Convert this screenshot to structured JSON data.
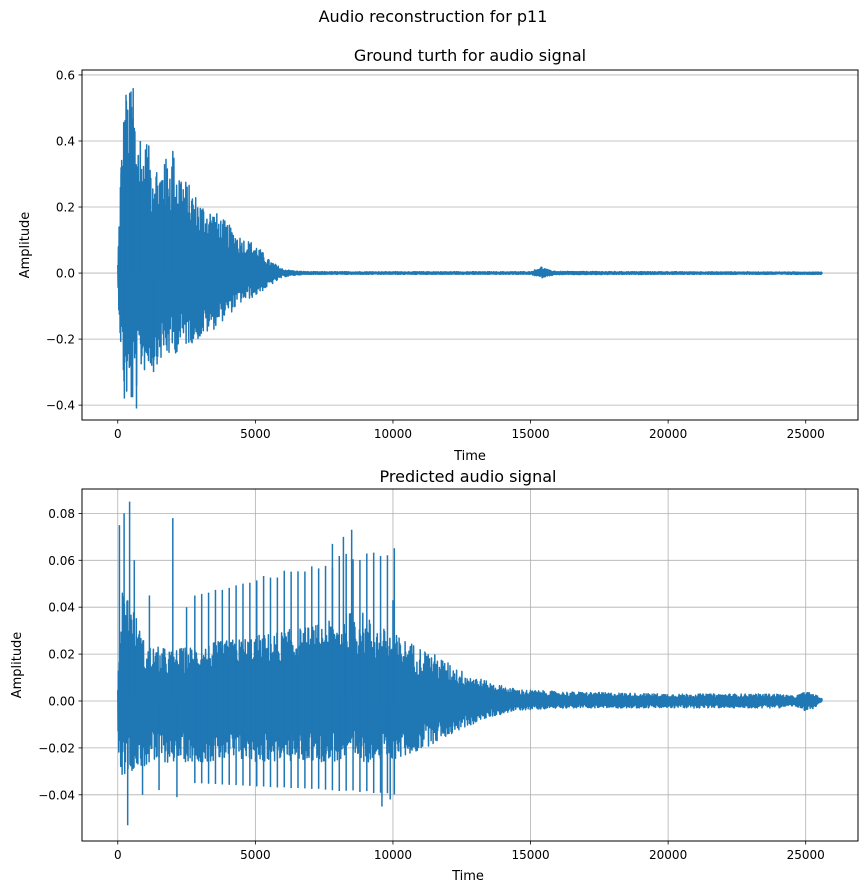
{
  "figure": {
    "suptitle": "Audio reconstruction for p11"
  },
  "chart_data": [
    {
      "type": "line",
      "title": "Ground turth for audio signal",
      "xlabel": "Time",
      "ylabel": "Amplitude",
      "xlim": [
        -1300,
        26900
      ],
      "ylim": [
        -0.445,
        0.615
      ],
      "xticks": [
        0,
        5000,
        10000,
        15000,
        20000,
        25000
      ],
      "xtick_labels": [
        "0",
        "5000",
        "10000",
        "15000",
        "20000",
        "25000"
      ],
      "yticks": [
        -0.4,
        -0.2,
        0.0,
        0.2,
        0.4,
        0.6
      ],
      "ytick_labels": [
        "−0.4",
        "−0.2",
        "0.0",
        "0.2",
        "0.4",
        "0.6"
      ],
      "grid": "y-only",
      "line_color": "#1f77b4",
      "x_range": [
        0,
        25600
      ],
      "envelope": {
        "x": [
          0,
          100,
          250,
          400,
          550,
          800,
          1100,
          1500,
          2000,
          2500,
          3000,
          3500,
          4000,
          4500,
          5000,
          5500,
          6000,
          6500,
          7000,
          10000,
          15000,
          15400,
          15500,
          15700,
          16000,
          20000,
          25600
        ],
        "upper": [
          0.03,
          0.32,
          0.54,
          0.55,
          0.56,
          0.4,
          0.39,
          0.33,
          0.37,
          0.28,
          0.22,
          0.19,
          0.15,
          0.11,
          0.09,
          0.04,
          0.012,
          0.006,
          0.004,
          0.004,
          0.004,
          0.02,
          0.015,
          0.008,
          0.005,
          0.004,
          0.003
        ],
        "lower": [
          -0.05,
          -0.22,
          -0.38,
          -0.39,
          -0.41,
          -0.3,
          -0.3,
          -0.27,
          -0.25,
          -0.22,
          -0.2,
          -0.17,
          -0.13,
          -0.09,
          -0.07,
          -0.04,
          -0.012,
          -0.006,
          -0.004,
          -0.004,
          -0.004,
          -0.015,
          -0.012,
          -0.008,
          -0.005,
          -0.004,
          -0.004
        ]
      },
      "spikes": [
        {
          "x": 120,
          "y": 0.32
        },
        {
          "x": 240,
          "y": -0.38
        },
        {
          "x": 300,
          "y": 0.54
        },
        {
          "x": 480,
          "y": 0.55
        },
        {
          "x": 560,
          "y": 0.56
        },
        {
          "x": 680,
          "y": -0.41
        },
        {
          "x": 820,
          "y": 0.4
        },
        {
          "x": 1050,
          "y": 0.39
        },
        {
          "x": 1300,
          "y": -0.3
        },
        {
          "x": 1700,
          "y": 0.33
        },
        {
          "x": 2000,
          "y": 0.37
        }
      ]
    },
    {
      "type": "line",
      "title": "Predicted audio signal",
      "xlabel": "Time",
      "ylabel": "Amplitude",
      "xlim": [
        -1300,
        26900
      ],
      "ylim": [
        -0.0597,
        0.0904
      ],
      "xticks": [
        0,
        5000,
        10000,
        15000,
        20000,
        25000
      ],
      "xtick_labels": [
        "0",
        "5000",
        "10000",
        "15000",
        "20000",
        "25000"
      ],
      "yticks": [
        -0.04,
        -0.02,
        0.0,
        0.02,
        0.04,
        0.06,
        0.08
      ],
      "ytick_labels": [
        "−0.04",
        "−0.02",
        "0.00",
        "0.02",
        "0.04",
        "0.06",
        "0.08"
      ],
      "grid": "both",
      "line_color": "#1f77b4",
      "x_range": [
        0,
        25600
      ],
      "envelope": {
        "x": [
          0,
          150,
          400,
          1000,
          2000,
          3000,
          4000,
          5000,
          6000,
          7000,
          8000,
          8700,
          9500,
          10500,
          11500,
          12500,
          13500,
          14500,
          16000,
          20000,
          24000,
          24600,
          25000,
          25300,
          25600
        ],
        "upper": [
          0.008,
          0.05,
          0.046,
          0.024,
          0.022,
          0.024,
          0.026,
          0.028,
          0.03,
          0.032,
          0.035,
          0.04,
          0.032,
          0.026,
          0.02,
          0.013,
          0.008,
          0.005,
          0.004,
          0.003,
          0.003,
          0.002,
          0.004,
          0.003,
          0.001
        ],
        "lower": [
          -0.02,
          -0.032,
          -0.03,
          -0.028,
          -0.026,
          -0.026,
          -0.026,
          -0.026,
          -0.026,
          -0.026,
          -0.026,
          -0.026,
          -0.026,
          -0.024,
          -0.018,
          -0.012,
          -0.007,
          -0.004,
          -0.003,
          -0.003,
          -0.003,
          -0.002,
          -0.005,
          -0.003,
          0.0
        ]
      },
      "spikes": [
        {
          "x": 60,
          "y": 0.075
        },
        {
          "x": 230,
          "y": 0.08
        },
        {
          "x": 360,
          "y": -0.053
        },
        {
          "x": 430,
          "y": 0.085
        },
        {
          "x": 600,
          "y": 0.06
        },
        {
          "x": 900,
          "y": -0.04
        },
        {
          "x": 1150,
          "y": 0.045
        },
        {
          "x": 1500,
          "y": -0.038
        },
        {
          "x": 2000,
          "y": 0.078
        },
        {
          "x": 2150,
          "y": -0.041
        },
        {
          "x": 2500,
          "y": 0.04
        },
        {
          "x": 7800,
          "y": 0.067
        },
        {
          "x": 8200,
          "y": 0.07
        },
        {
          "x": 8500,
          "y": 0.073
        },
        {
          "x": 9600,
          "y": -0.045
        },
        {
          "x": 9900,
          "y": -0.042
        },
        {
          "x": 10000,
          "y": 0.043
        }
      ],
      "pulse_train": {
        "x_start": 2800,
        "x_end": 10200,
        "period": 250,
        "peak_start": 0.045,
        "peak_end": 0.07,
        "trough_start": -0.035,
        "trough_end": -0.04
      }
    }
  ]
}
